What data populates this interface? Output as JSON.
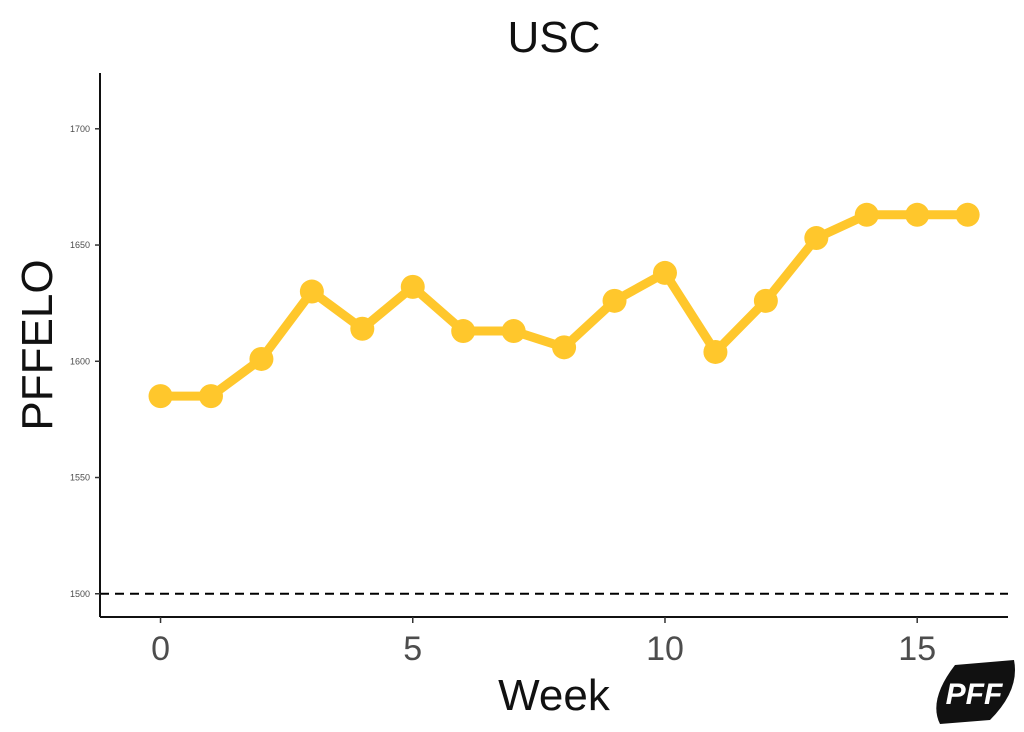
{
  "chart_data": {
    "type": "line",
    "title": "USC",
    "xlabel": "Week",
    "ylabel": "PFFELO",
    "x": [
      0,
      1,
      2,
      3,
      4,
      5,
      6,
      7,
      8,
      9,
      10,
      11,
      12,
      13,
      14,
      15,
      16
    ],
    "series": [
      {
        "values": [
          1585,
          1585,
          1601,
          1630,
          1614,
          1632,
          1613,
          1613,
          1606,
          1626,
          1638,
          1604,
          1626,
          1653,
          1663,
          1663,
          1663
        ],
        "color": "#FFC72C"
      }
    ],
    "xlim": [
      -1.2,
      16.8
    ],
    "ylim": [
      1490,
      1724
    ],
    "xticks": [
      0,
      5,
      10,
      15
    ],
    "yticks": [
      1500,
      1550,
      1600,
      1650,
      1700
    ],
    "reference_line": {
      "y": 1500,
      "style": "dashed",
      "color": "#000000"
    },
    "grid": false
  },
  "logo": {
    "text": "PFF",
    "color": "#111111"
  }
}
